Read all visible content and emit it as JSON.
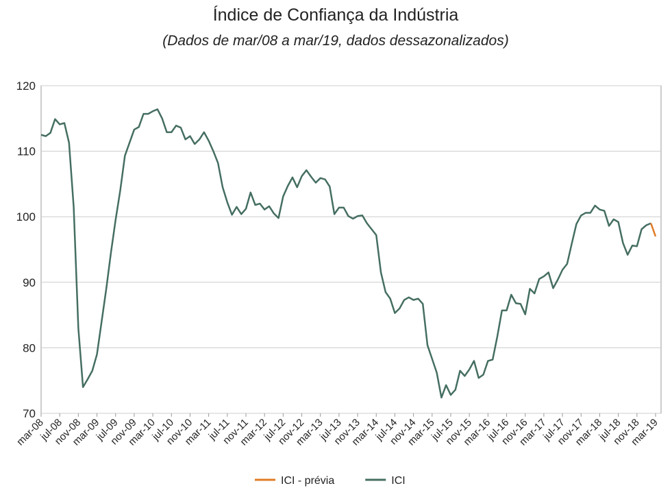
{
  "chart_data": {
    "type": "line",
    "title": "Índice de Confiança da Indústria",
    "subtitle": "(Dados de mar/08 a mar/19, dados dessazonalizados)",
    "categories": [
      "mar-08",
      null,
      null,
      null,
      "jul-08",
      null,
      null,
      null,
      "nov-08",
      null,
      null,
      null,
      "mar-09",
      null,
      null,
      null,
      "jul-09",
      null,
      null,
      null,
      "nov-09",
      null,
      null,
      null,
      "mar-10",
      null,
      null,
      null,
      "jul-10",
      null,
      null,
      null,
      "nov-10",
      null,
      null,
      null,
      "mar-11",
      null,
      null,
      null,
      "jul-11",
      null,
      null,
      null,
      "nov-11",
      null,
      null,
      null,
      "mar-12",
      null,
      null,
      null,
      "jul-12",
      null,
      null,
      null,
      "nov-12",
      null,
      null,
      null,
      "mar-13",
      null,
      null,
      null,
      "jul-13",
      null,
      null,
      null,
      "nov-13",
      null,
      null,
      null,
      "mar-14",
      null,
      null,
      null,
      "jul-14",
      null,
      null,
      null,
      "nov-14",
      null,
      null,
      null,
      "mar-15",
      null,
      null,
      null,
      "jul-15",
      null,
      null,
      null,
      "nov-15",
      null,
      null,
      null,
      "mar-16",
      null,
      null,
      null,
      "jul-16",
      null,
      null,
      null,
      "nov-16",
      null,
      null,
      null,
      "mar-17",
      null,
      null,
      null,
      "jul-17",
      null,
      null,
      null,
      "nov-17",
      null,
      null,
      null,
      "mar-18",
      null,
      null,
      null,
      "jul-18",
      null,
      null,
      null,
      "nov-18",
      null,
      null,
      null,
      "mar-19"
    ],
    "series": [
      {
        "name": "ICI - prévia",
        "color": "#e07b24",
        "values": [
          null,
          null,
          null,
          null,
          null,
          null,
          null,
          null,
          null,
          null,
          null,
          null,
          null,
          null,
          null,
          null,
          null,
          null,
          null,
          null,
          null,
          null,
          null,
          null,
          null,
          null,
          null,
          null,
          null,
          null,
          null,
          null,
          null,
          null,
          null,
          null,
          null,
          null,
          null,
          null,
          null,
          null,
          null,
          null,
          null,
          null,
          null,
          null,
          null,
          null,
          null,
          null,
          null,
          null,
          null,
          null,
          null,
          null,
          null,
          null,
          null,
          null,
          null,
          null,
          null,
          null,
          null,
          null,
          null,
          null,
          null,
          null,
          null,
          null,
          null,
          null,
          null,
          null,
          null,
          null,
          null,
          null,
          null,
          null,
          null,
          null,
          null,
          null,
          null,
          null,
          null,
          null,
          null,
          null,
          null,
          null,
          null,
          null,
          null,
          null,
          null,
          null,
          null,
          null,
          null,
          null,
          null,
          null,
          null,
          null,
          null,
          null,
          null,
          null,
          null,
          null,
          null,
          null,
          null,
          null,
          null,
          null,
          null,
          null,
          null,
          null,
          null,
          null,
          null,
          null,
          null,
          99,
          97
        ]
      },
      {
        "name": "ICI",
        "color": "#456e62",
        "values": [
          112.5,
          112.3,
          112.8,
          114.9,
          114.1,
          114.3,
          111.3,
          101.5,
          83,
          74,
          75.2,
          76.5,
          79,
          84,
          89,
          94.5,
          99.5,
          104,
          109.3,
          111.3,
          113.3,
          113.7,
          115.7,
          115.7,
          116.1,
          116.4,
          115,
          112.9,
          112.9,
          113.9,
          113.6,
          111.8,
          112.3,
          111.1,
          111.8,
          112.9,
          111.6,
          110,
          108.2,
          104.5,
          102.2,
          100.3,
          101.5,
          100.4,
          101.2,
          103.7,
          101.8,
          102,
          101.1,
          101.6,
          100.5,
          99.8,
          103.1,
          104.7,
          106,
          104.5,
          106.2,
          107.1,
          106.1,
          105.2,
          105.9,
          105.7,
          104.6,
          100.4,
          101.4,
          101.4,
          100.1,
          99.7,
          100.1,
          100.2,
          99,
          98.1,
          97.2,
          91.5,
          88.5,
          87.5,
          85.3,
          86,
          87.3,
          87.7,
          87.3,
          87.5,
          86.7,
          80.4,
          78.3,
          76.2,
          72.4,
          74.3,
          72.8,
          73.6,
          76.5,
          75.7,
          76.7,
          78,
          75.4,
          75.9,
          78,
          78.2,
          81.7,
          85.7,
          85.7,
          88.1,
          86.8,
          86.7,
          85.1,
          89,
          88.3,
          90.5,
          90.9,
          91.5,
          89.1,
          90.4,
          91.9,
          92.8,
          95.9,
          98.9,
          100.2,
          100.6,
          100.6,
          101.7,
          101.1,
          100.9,
          98.6,
          99.6,
          99.2,
          96,
          94.2,
          95.6,
          95.5,
          98.1,
          98.7,
          99,
          null
        ]
      }
    ],
    "ylim": [
      70,
      120
    ],
    "yticks": [
      70,
      80,
      90,
      100,
      110,
      120
    ],
    "grid": true,
    "legend": "bottom"
  }
}
